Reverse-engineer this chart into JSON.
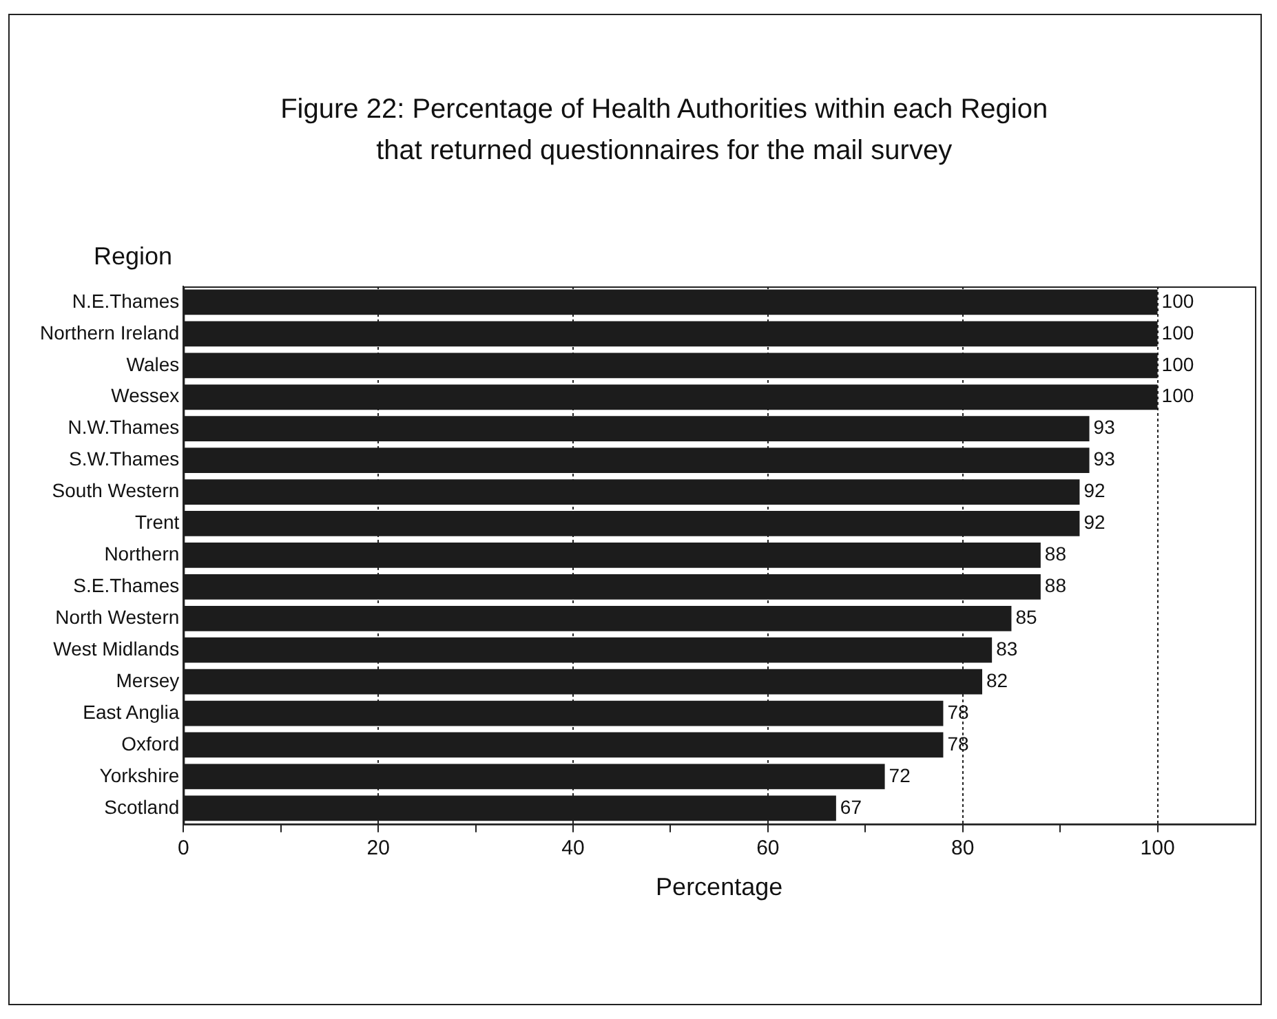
{
  "chart_data": {
    "type": "bar",
    "orientation": "horizontal",
    "title": "Figure 22: Percentage of Health Authorities within each Region that returned questionnaires for the mail survey",
    "xlabel": "Percentage",
    "ylabel": "Region",
    "categories": [
      "N.E.Thames",
      "Northern Ireland",
      "Wales",
      "Wessex",
      "N.W.Thames",
      "S.W.Thames",
      "South Western",
      "Trent",
      "Northern",
      "S.E.Thames",
      "North Western",
      "West Midlands",
      "Mersey",
      "East Anglia",
      "Oxford",
      "Yorkshire",
      "Scotland"
    ],
    "values": [
      100,
      100,
      100,
      100,
      93,
      93,
      92,
      92,
      88,
      88,
      85,
      83,
      82,
      78,
      78,
      72,
      67
    ],
    "color": "#1c1c1c",
    "xlim": [
      0,
      110
    ],
    "xticks": [
      0,
      {
        "value": 10,
        "label": null
      },
      20,
      {
        "value": 30,
        "label": null
      },
      40,
      {
        "value": 50,
        "label": null
      },
      60,
      {
        "value": 70,
        "label": null
      },
      80,
      {
        "value": 90,
        "label": null
      },
      100
    ],
    "grid": "x",
    "data_labels": true,
    "legend": false
  }
}
